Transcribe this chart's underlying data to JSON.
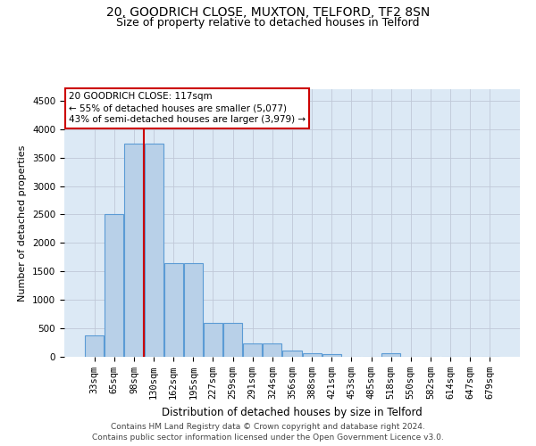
{
  "title": "20, GOODRICH CLOSE, MUXTON, TELFORD, TF2 8SN",
  "subtitle": "Size of property relative to detached houses in Telford",
  "xlabel": "Distribution of detached houses by size in Telford",
  "ylabel": "Number of detached properties",
  "categories": [
    "33sqm",
    "65sqm",
    "98sqm",
    "130sqm",
    "162sqm",
    "195sqm",
    "227sqm",
    "259sqm",
    "291sqm",
    "324sqm",
    "356sqm",
    "388sqm",
    "421sqm",
    "453sqm",
    "485sqm",
    "518sqm",
    "550sqm",
    "582sqm",
    "614sqm",
    "647sqm",
    "679sqm"
  ],
  "values": [
    370,
    2500,
    3750,
    3750,
    1650,
    1650,
    590,
    590,
    230,
    230,
    110,
    65,
    50,
    0,
    0,
    60,
    0,
    0,
    0,
    0,
    0
  ],
  "bar_color": "#b8d0e8",
  "bar_edge_color": "#5b9bd5",
  "vline_color": "#cc0000",
  "vline_x": 2.5,
  "annotation_line1": "20 GOODRICH CLOSE: 117sqm",
  "annotation_line2": "← 55% of detached houses are smaller (5,077)",
  "annotation_line3": "43% of semi-detached houses are larger (3,979) →",
  "annotation_box_facecolor": "#ffffff",
  "annotation_box_edgecolor": "#cc0000",
  "ylim_max": 4700,
  "yticks": [
    0,
    500,
    1000,
    1500,
    2000,
    2500,
    3000,
    3500,
    4000,
    4500
  ],
  "grid_color": "#c0c8d8",
  "plot_bg_color": "#dce9f5",
  "footer_line1": "Contains HM Land Registry data © Crown copyright and database right 2024.",
  "footer_line2": "Contains public sector information licensed under the Open Government Licence v3.0.",
  "title_fontsize": 10,
  "subtitle_fontsize": 9,
  "xlabel_fontsize": 8.5,
  "ylabel_fontsize": 8,
  "tick_fontsize": 7.5,
  "annotation_fontsize": 7.5,
  "footer_fontsize": 6.5
}
